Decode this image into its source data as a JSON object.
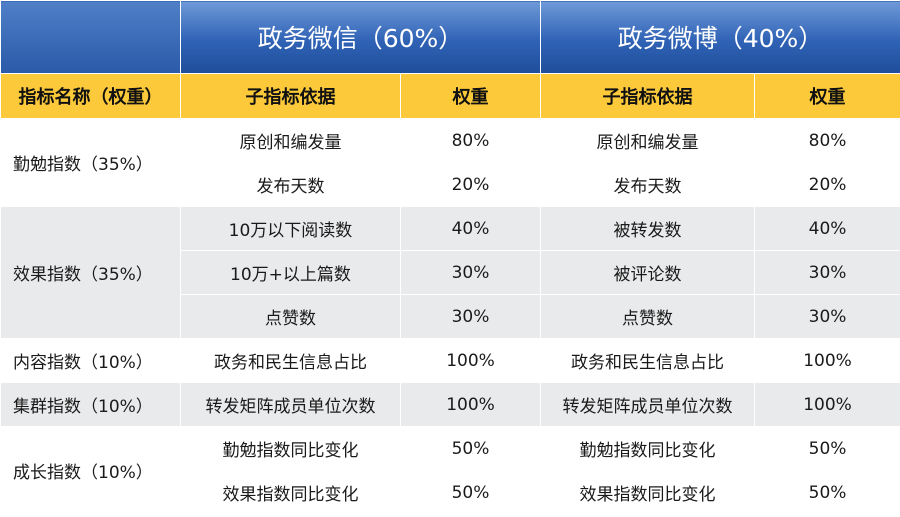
{
  "header": {
    "wechat_title": "政务微信（60%）",
    "weibo_title": "政务微博（40%）"
  },
  "subheader": {
    "indicator_name": "指标名称（权重）",
    "wechat_basis": "子指标依据",
    "wechat_weight": "权重",
    "weibo_basis": "子指标依据",
    "weibo_weight": "权重"
  },
  "groups": [
    {
      "name": "勤勉指数（35%）"
    },
    {
      "name": "效果指数（35%）"
    },
    {
      "name": "内容指数（10%）"
    },
    {
      "name": "集群指数（10%）"
    },
    {
      "name": "成长指数（10%）"
    }
  ],
  "rows": [
    {
      "wechat_sub": "原创和编发量",
      "wechat_w": "80%",
      "weibo_sub": "原创和编发量",
      "weibo_w": "80%"
    },
    {
      "wechat_sub": "发布天数",
      "wechat_w": "20%",
      "weibo_sub": "发布天数",
      "weibo_w": "20%"
    },
    {
      "wechat_sub": "10万以下阅读数",
      "wechat_w": "40%",
      "weibo_sub": "被转发数",
      "weibo_w": "40%"
    },
    {
      "wechat_sub": "10万+以上篇数",
      "wechat_w": "30%",
      "weibo_sub": "被评论数",
      "weibo_w": "30%"
    },
    {
      "wechat_sub": "点赞数",
      "wechat_w": "30%",
      "weibo_sub": "点赞数",
      "weibo_w": "30%"
    },
    {
      "wechat_sub": "政务和民生信息占比",
      "wechat_w": "100%",
      "weibo_sub": "政务和民生信息占比",
      "weibo_w": "100%"
    },
    {
      "wechat_sub": "转发矩阵成员单位次数",
      "wechat_w": "100%",
      "weibo_sub": "转发矩阵成员单位次数",
      "weibo_w": "100%"
    },
    {
      "wechat_sub": "勤勉指数同比变化",
      "wechat_w": "50%",
      "weibo_sub": "勤勉指数同比变化",
      "weibo_w": "50%"
    },
    {
      "wechat_sub": "效果指数同比变化",
      "wechat_w": "50%",
      "weibo_sub": "效果指数同比变化",
      "weibo_w": "50%"
    }
  ]
}
